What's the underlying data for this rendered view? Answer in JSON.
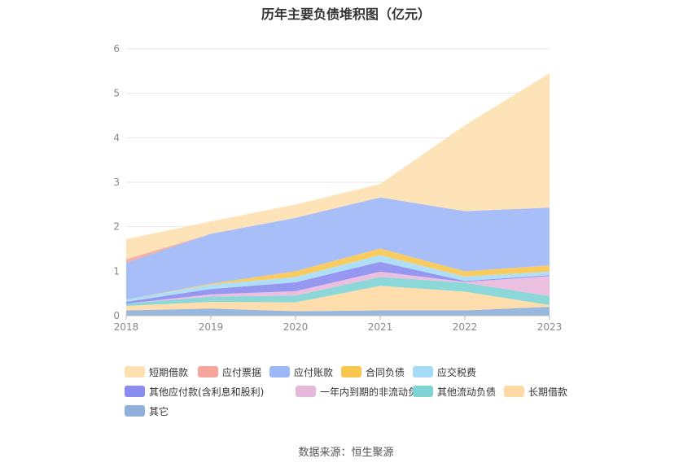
{
  "chart_data": {
    "type": "area",
    "title": "历年主要负债堆积图（亿元）",
    "x": [
      "2018",
      "2019",
      "2020",
      "2021",
      "2022",
      "2023"
    ],
    "y_ticks": [
      "0",
      "1",
      "2",
      "3",
      "4",
      "5",
      "6"
    ],
    "ylim": [
      0,
      6
    ],
    "stacked": true,
    "grid": true,
    "legend_position": "bottom",
    "series": [
      {
        "name": "其它",
        "color": "#8fb0dc",
        "values": [
          0.12,
          0.16,
          0.1,
          0.12,
          0.12,
          0.2
        ]
      },
      {
        "name": "长期借款",
        "color": "#ffd9a3",
        "values": [
          0.1,
          0.15,
          0.2,
          0.55,
          0.42,
          0.04
        ]
      },
      {
        "name": "其他流动负债",
        "color": "#7fd3d3",
        "values": [
          0.05,
          0.12,
          0.15,
          0.2,
          0.2,
          0.2
        ]
      },
      {
        "name": "一年内到期的非流动负债",
        "color": "#e8b8db",
        "values": [
          0.0,
          0.05,
          0.1,
          0.12,
          0.02,
          0.45
        ]
      },
      {
        "name": "其他应付款(含利息和股利)",
        "color": "#8a8cf0",
        "values": [
          0.04,
          0.12,
          0.2,
          0.22,
          0.02,
          0.02
        ]
      },
      {
        "name": "应交税费",
        "color": "#a6dcf5",
        "values": [
          0.05,
          0.1,
          0.12,
          0.15,
          0.1,
          0.08
        ]
      },
      {
        "name": "合同负债",
        "color": "#f9c74f",
        "values": [
          0.0,
          0.02,
          0.13,
          0.15,
          0.12,
          0.14
        ]
      },
      {
        "name": "应付账款",
        "color": "#9db7f7",
        "values": [
          0.83,
          1.12,
          1.2,
          1.15,
          1.35,
          1.3
        ]
      },
      {
        "name": "应付票据",
        "color": "#f6a59c",
        "values": [
          0.08,
          0.0,
          0.0,
          0.0,
          0.0,
          0.0
        ]
      },
      {
        "name": "短期借款",
        "color": "#ffe0b0",
        "values": [
          0.45,
          0.28,
          0.3,
          0.3,
          1.93,
          3.02
        ]
      }
    ],
    "legend_order": [
      "短期借款",
      "应付票据",
      "应付账款",
      "合同负债",
      "应交税费",
      "其他应付款(含利息和股利)",
      "一年内到期的非流动负债",
      "其他流动负债",
      "长期借款",
      "其它"
    ]
  },
  "source": "数据来源：恒生聚源"
}
